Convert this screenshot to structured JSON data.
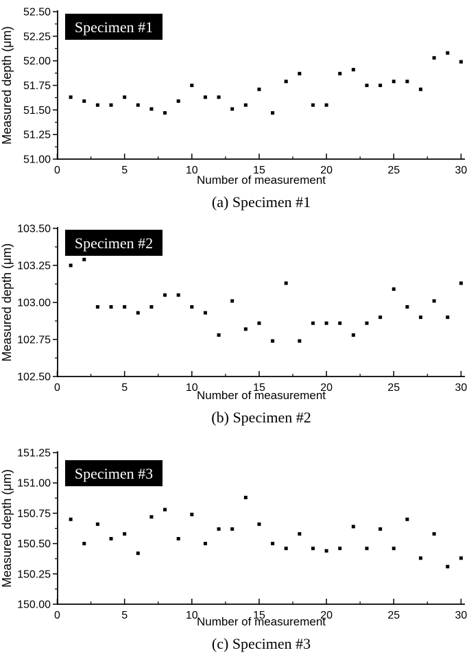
{
  "figure": {
    "background": "#ffffff",
    "foreground": "#000000"
  },
  "chart_data": [
    {
      "type": "scatter",
      "id": "a",
      "legend": "Specimen #1",
      "caption": "(a) Specimen #1",
      "xlabel": "Number of measurement",
      "ylabel": "Measured depth (μm)",
      "xlim": [
        0,
        30.3
      ],
      "ylim": [
        51.0,
        52.5
      ],
      "xticks": [
        0,
        5,
        10,
        15,
        20,
        25,
        30
      ],
      "yticks": [
        51.0,
        51.25,
        51.5,
        51.75,
        52.0,
        52.25,
        52.5
      ],
      "ytick_decimals": 2,
      "grid": false,
      "legend_position": "top-left",
      "marker": {
        "shape": "square",
        "color": "#000000",
        "size": 5
      },
      "x": [
        1,
        2,
        3,
        4,
        5,
        6,
        7,
        8,
        9,
        10,
        11,
        12,
        13,
        14,
        15,
        16,
        17,
        18,
        19,
        20,
        21,
        22,
        23,
        24,
        25,
        26,
        27,
        28,
        29,
        30
      ],
      "values": [
        51.63,
        51.59,
        51.55,
        51.55,
        51.63,
        51.55,
        51.51,
        51.47,
        51.59,
        51.75,
        51.63,
        51.63,
        51.51,
        51.55,
        51.71,
        51.47,
        51.79,
        51.87,
        51.55,
        51.55,
        51.87,
        51.91,
        51.75,
        51.75,
        51.79,
        51.79,
        51.71,
        52.03,
        52.08,
        51.99
      ]
    },
    {
      "type": "scatter",
      "id": "b",
      "legend": "Specimen #2",
      "caption": "(b) Specimen #2",
      "xlabel": "Number of measurement",
      "ylabel": "Measured depth (μm)",
      "xlim": [
        0,
        30.3
      ],
      "ylim": [
        102.5,
        103.5
      ],
      "xticks": [
        0,
        5,
        10,
        15,
        20,
        25,
        30
      ],
      "yticks": [
        102.5,
        102.75,
        103.0,
        103.25,
        103.5
      ],
      "ytick_decimals": 2,
      "grid": false,
      "legend_position": "top-left",
      "marker": {
        "shape": "square",
        "color": "#000000",
        "size": 5
      },
      "x": [
        1,
        2,
        3,
        4,
        5,
        6,
        7,
        8,
        9,
        10,
        11,
        12,
        13,
        14,
        15,
        16,
        17,
        18,
        19,
        20,
        21,
        22,
        23,
        24,
        25,
        26,
        27,
        28,
        29,
        30
      ],
      "values": [
        103.25,
        103.29,
        102.97,
        102.97,
        102.97,
        102.93,
        102.97,
        103.05,
        103.05,
        102.97,
        102.93,
        102.78,
        103.01,
        102.82,
        102.86,
        102.74,
        103.13,
        102.74,
        102.86,
        102.86,
        102.86,
        102.78,
        102.86,
        102.9,
        103.09,
        102.97,
        102.9,
        103.01,
        102.9,
        103.13
      ]
    },
    {
      "type": "scatter",
      "id": "c",
      "legend": "Specimen #3",
      "caption": "(c) Specimen #3",
      "xlabel": "Number of measurement",
      "ylabel": "Measured depth (μm)",
      "xlim": [
        0,
        30.3
      ],
      "ylim": [
        150.0,
        151.25
      ],
      "xticks": [
        0,
        5,
        10,
        15,
        20,
        25,
        30
      ],
      "yticks": [
        150.0,
        150.25,
        150.5,
        150.75,
        151.0,
        151.25
      ],
      "ytick_decimals": 2,
      "grid": false,
      "legend_position": "top-left",
      "marker": {
        "shape": "square",
        "color": "#000000",
        "size": 5
      },
      "x": [
        1,
        2,
        3,
        4,
        5,
        6,
        7,
        8,
        9,
        10,
        11,
        12,
        13,
        14,
        15,
        16,
        17,
        18,
        19,
        20,
        21,
        22,
        23,
        24,
        25,
        26,
        27,
        28,
        29,
        30
      ],
      "values": [
        150.7,
        150.5,
        150.66,
        150.54,
        150.58,
        150.42,
        150.72,
        150.78,
        150.54,
        150.74,
        150.5,
        150.62,
        150.62,
        150.88,
        150.66,
        150.5,
        150.46,
        150.58,
        150.46,
        150.44,
        150.46,
        150.64,
        150.46,
        150.62,
        150.46,
        150.7,
        150.38,
        150.58,
        150.31,
        150.38
      ]
    }
  ]
}
